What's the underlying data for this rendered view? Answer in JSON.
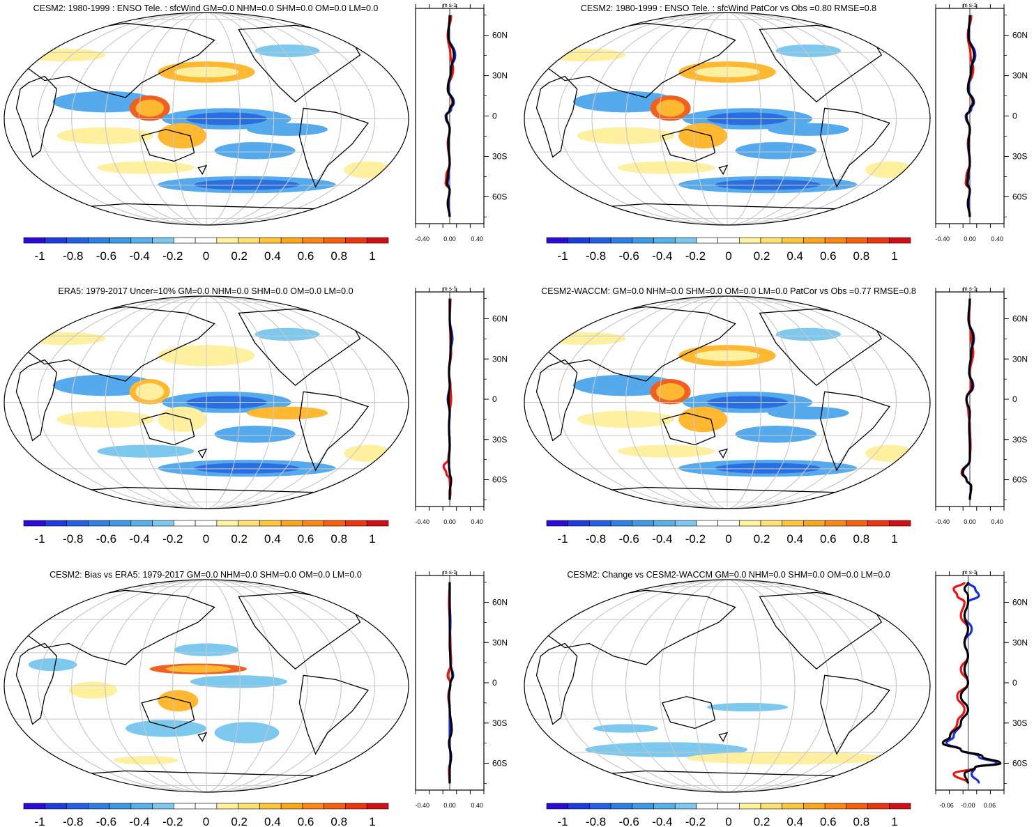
{
  "figure": {
    "description_units": "m s-1",
    "colorbar_ticks": [
      "-1",
      "-0.8",
      "-0.6",
      "-0.4",
      "-0.2",
      "0",
      "0.2",
      "0.4",
      "0.6",
      "0.8",
      "1"
    ],
    "colorbar_colors": [
      "#2a0bd9",
      "#1c3ce0",
      "#2460e6",
      "#2f7fe8",
      "#3d9ae6",
      "#55b2ea",
      "#7cc8ee",
      "#ffffff",
      "#ffffff",
      "#fff3a0",
      "#ffe070",
      "#ffc63c",
      "#ffa71a",
      "#ff8612",
      "#f9600c",
      "#ee3510",
      "#d30f14"
    ],
    "lat_labels": [
      "60N",
      "30N",
      "0",
      "30S",
      "60S"
    ],
    "lat_values": [
      60,
      30,
      0,
      -30,
      -60
    ]
  },
  "chart_data": [
    {
      "type": "heatmap",
      "panel": "top-left",
      "title": "CESM2: 1980-1999 : ENSO Tele. : sfcWind GM=0.0 NHM=0.0 SHM=0.0 OM=0.0 LM=0.0",
      "units": "m s-1",
      "zonal_plot": {
        "xlim": [
          -0.5,
          0.5
        ],
        "xtick_labels": [
          "-0.40",
          "0.00",
          "0.40"
        ],
        "xticks": [
          -0.4,
          0.0,
          0.4
        ],
        "ylim": [
          -80,
          80
        ]
      },
      "profiles": [
        {
          "name": "red",
          "color": "#ee1111",
          "lat": [
            75,
            60,
            45,
            35,
            20,
            10,
            5,
            0,
            -10,
            -20,
            -35,
            -45,
            -50,
            -55,
            -65,
            -75
          ],
          "values": [
            0.02,
            -0.03,
            0.01,
            0.05,
            -0.02,
            0.04,
            0.01,
            -0.05,
            0.0,
            -0.03,
            0.0,
            -0.05,
            -0.06,
            0.0,
            -0.03,
            0.0
          ]
        },
        {
          "name": "blue",
          "color": "#1a2fdd",
          "lat": [
            75,
            60,
            45,
            35,
            20,
            10,
            5,
            0,
            -10,
            -20,
            -35,
            -45,
            -50,
            -55,
            -65,
            -75
          ],
          "values": [
            0.0,
            -0.02,
            0.08,
            0.02,
            -0.02,
            0.06,
            0.02,
            -0.06,
            0.0,
            -0.02,
            0.0,
            -0.02,
            -0.03,
            0.0,
            -0.02,
            0.0
          ]
        },
        {
          "name": "black",
          "color": "#000000",
          "lat": [
            75,
            60,
            45,
            35,
            20,
            10,
            5,
            0,
            -10,
            -20,
            -35,
            -45,
            -50,
            -55,
            -65,
            -75
          ],
          "values": [
            0.0,
            -0.02,
            0.06,
            0.02,
            -0.03,
            0.05,
            0.0,
            -0.05,
            0.0,
            -0.02,
            0.0,
            -0.03,
            -0.04,
            0.0,
            -0.03,
            0.0
          ]
        }
      ]
    },
    {
      "type": "heatmap",
      "panel": "top-right",
      "title": "CESM2: 1980-1999 : ENSO Tele. : sfcWind PatCor vs Obs =0.80 RMSE=0.8",
      "units": "m s-1",
      "zonal_plot": {
        "xlim": [
          -0.5,
          0.5
        ],
        "xtick_labels": [
          "-0.40",
          "0.00",
          "0.40"
        ],
        "xticks": [
          -0.4,
          0.0,
          0.4
        ],
        "ylim": [
          -80,
          80
        ]
      },
      "profiles": [
        {
          "name": "red",
          "color": "#ee1111",
          "lat": [
            75,
            60,
            45,
            35,
            20,
            10,
            5,
            0,
            -10,
            -20,
            -35,
            -45,
            -50,
            -55,
            -65,
            -75
          ],
          "values": [
            0.02,
            -0.03,
            0.01,
            0.05,
            -0.02,
            0.04,
            0.01,
            -0.05,
            0.0,
            -0.03,
            0.0,
            -0.05,
            -0.06,
            0.0,
            -0.03,
            0.0
          ]
        },
        {
          "name": "blue",
          "color": "#1a2fdd",
          "lat": [
            75,
            60,
            45,
            35,
            20,
            10,
            5,
            0,
            -10,
            -20,
            -35,
            -45,
            -50,
            -55,
            -65,
            -75
          ],
          "values": [
            0.0,
            -0.02,
            0.08,
            0.02,
            -0.02,
            0.06,
            0.02,
            -0.06,
            0.0,
            -0.02,
            0.0,
            -0.02,
            -0.03,
            0.0,
            -0.02,
            0.0
          ]
        },
        {
          "name": "black",
          "color": "#000000",
          "lat": [
            75,
            60,
            45,
            35,
            20,
            10,
            5,
            0,
            -10,
            -20,
            -35,
            -45,
            -50,
            -55,
            -65,
            -75
          ],
          "values": [
            0.0,
            -0.02,
            0.06,
            0.02,
            -0.03,
            0.05,
            0.0,
            -0.05,
            0.0,
            -0.02,
            0.0,
            -0.03,
            -0.04,
            0.0,
            -0.03,
            0.0
          ]
        }
      ]
    },
    {
      "type": "heatmap",
      "panel": "middle-left",
      "title": "ERA5: 1979-2017 Uncer=10% GM=0.0 NHM=0.0 SHM=0.0 OM=0.0 LM=0.0",
      "units": "m s-1",
      "zonal_plot": {
        "xlim": [
          -0.5,
          0.5
        ],
        "xtick_labels": [
          "-0.40",
          "0.00",
          "0.40"
        ],
        "xticks": [
          -0.4,
          0.0,
          0.4
        ],
        "ylim": [
          -80,
          80
        ]
      },
      "profiles": [
        {
          "name": "red",
          "color": "#ee1111",
          "lat": [
            75,
            60,
            45,
            35,
            20,
            10,
            0,
            -10,
            -20,
            -35,
            -45,
            -50,
            -55,
            -60,
            -70,
            -75
          ],
          "values": [
            0.01,
            0.0,
            0.01,
            0.02,
            -0.01,
            0.01,
            0.02,
            0.0,
            -0.01,
            0.0,
            -0.02,
            -0.09,
            -0.05,
            0.0,
            0.01,
            0.0
          ]
        },
        {
          "name": "blue",
          "color": "#1a2fdd",
          "lat": [
            75,
            60,
            45,
            35,
            20,
            10,
            0,
            -10,
            -20,
            -35,
            -45,
            -50,
            -55,
            -60,
            -70,
            -75
          ],
          "values": [
            0.0,
            0.0,
            0.04,
            0.01,
            -0.01,
            0.0,
            -0.03,
            0.0,
            -0.01,
            0.0,
            -0.01,
            -0.01,
            0.0,
            0.02,
            0.0,
            0.0
          ]
        },
        {
          "name": "black",
          "color": "#000000",
          "lat": [
            75,
            60,
            45,
            35,
            20,
            10,
            0,
            -10,
            -20,
            -35,
            -45,
            -50,
            -55,
            -60,
            -70,
            -75
          ],
          "values": [
            0.0,
            0.0,
            0.02,
            0.01,
            -0.01,
            0.0,
            -0.02,
            0.0,
            -0.01,
            0.0,
            -0.01,
            -0.01,
            0.0,
            0.02,
            0.0,
            0.0
          ]
        }
      ]
    },
    {
      "type": "heatmap",
      "panel": "middle-right",
      "title": "CESM2-WACCM: GM=0.0 NHM=0.0 SHM=0.0 OM=0.0 LM=0.0 PatCor vs Obs =0.77 RMSE=0.8",
      "units": "m s-1",
      "zonal_plot": {
        "xlim": [
          -0.5,
          0.5
        ],
        "xtick_labels": [
          "-0.40",
          "0.00",
          "0.40"
        ],
        "xticks": [
          -0.4,
          0.0,
          0.4
        ],
        "ylim": [
          -80,
          80
        ]
      },
      "profiles": [
        {
          "name": "red",
          "color": "#ee1111",
          "lat": [
            75,
            60,
            45,
            35,
            20,
            10,
            0,
            -10,
            -20,
            -35,
            -45,
            -55,
            -60,
            -65,
            -75
          ],
          "values": [
            0.0,
            -0.01,
            0.02,
            0.05,
            0.0,
            0.02,
            -0.05,
            -0.02,
            0.0,
            0.01,
            0.0,
            -0.12,
            -0.05,
            0.02,
            0.0
          ]
        },
        {
          "name": "blue",
          "color": "#1a2fdd",
          "lat": [
            75,
            60,
            45,
            35,
            20,
            10,
            0,
            -10,
            -20,
            -35,
            -45,
            -55,
            -60,
            -65,
            -75
          ],
          "values": [
            0.0,
            -0.02,
            0.06,
            0.02,
            -0.01,
            0.05,
            -0.05,
            0.0,
            -0.01,
            0.0,
            0.0,
            -0.1,
            -0.05,
            0.02,
            0.0
          ]
        },
        {
          "name": "black",
          "color": "#000000",
          "lat": [
            75,
            60,
            45,
            35,
            20,
            10,
            0,
            -10,
            -20,
            -35,
            -45,
            -55,
            -60,
            -65,
            -75
          ],
          "values": [
            0.0,
            -0.02,
            0.05,
            0.02,
            -0.01,
            0.04,
            -0.05,
            0.0,
            -0.01,
            0.0,
            0.0,
            -0.11,
            -0.05,
            0.02,
            0.0
          ]
        }
      ]
    },
    {
      "type": "heatmap",
      "panel": "bottom-left",
      "title": "CESM2: Bias vs ERA5: 1979-2017 GM=0.0 NHM=0.0 SHM=0.0 OM=0.0 LM=0.0",
      "units": "m s-1",
      "zonal_plot": {
        "xlim": [
          -0.5,
          0.5
        ],
        "xtick_labels": [
          "-0.40",
          "0.00",
          "0.40"
        ],
        "xticks": [
          -0.4,
          0.0,
          0.4
        ],
        "ylim": [
          -80,
          80
        ]
      },
      "profiles": [
        {
          "name": "red",
          "color": "#ee1111",
          "lat": [
            75,
            60,
            45,
            30,
            15,
            5,
            0,
            -10,
            -20,
            -35,
            -45,
            -55,
            -65,
            -75
          ],
          "values": [
            0.0,
            -0.01,
            0.0,
            0.01,
            0.02,
            -0.03,
            0.01,
            -0.02,
            0.0,
            0.03,
            -0.01,
            0.02,
            -0.01,
            0.0
          ]
        },
        {
          "name": "blue",
          "color": "#1a2fdd",
          "lat": [
            75,
            60,
            45,
            30,
            15,
            5,
            0,
            -10,
            -20,
            -35,
            -45,
            -55,
            -65,
            -75
          ],
          "values": [
            0.0,
            0.0,
            0.01,
            0.0,
            0.01,
            0.05,
            0.01,
            -0.01,
            0.0,
            0.0,
            0.0,
            0.01,
            0.0,
            0.0
          ]
        },
        {
          "name": "black",
          "color": "#000000",
          "lat": [
            75,
            60,
            45,
            30,
            15,
            5,
            0,
            -10,
            -20,
            -35,
            -45,
            -55,
            -65,
            -75
          ],
          "values": [
            0.0,
            0.0,
            0.0,
            0.0,
            0.01,
            0.04,
            0.01,
            -0.01,
            0.0,
            0.03,
            -0.01,
            0.02,
            0.0,
            0.0
          ]
        }
      ]
    },
    {
      "type": "heatmap",
      "panel": "bottom-right",
      "title": "CESM2: Change vs CESM2-WACCM GM=0.0 NHM=0.0 SHM=0.0 OM=0.0 LM=0.0",
      "units": "m s-1",
      "zonal_plot": {
        "xlim": [
          -0.09,
          0.1
        ],
        "xtick_labels": [
          "-0.06",
          "-0.00",
          "0.06"
        ],
        "xticks": [
          -0.06,
          0.0,
          0.06
        ],
        "ylim": [
          -80,
          80
        ]
      },
      "profiles": [
        {
          "name": "red",
          "color": "#ee1111",
          "lat": [
            75,
            70,
            65,
            60,
            50,
            40,
            30,
            20,
            10,
            0,
            -10,
            -20,
            -30,
            -40,
            -45,
            -50,
            -55,
            -60,
            -63,
            -68,
            -75
          ],
          "values": [
            -0.01,
            -0.04,
            -0.03,
            -0.01,
            -0.02,
            0.0,
            -0.01,
            0.0,
            -0.02,
            0.0,
            -0.03,
            -0.01,
            -0.03,
            -0.05,
            -0.07,
            -0.02,
            0.04,
            0.09,
            0.02,
            -0.04,
            0.0
          ]
        },
        {
          "name": "blue",
          "color": "#1a2fdd",
          "lat": [
            75,
            70,
            65,
            60,
            50,
            40,
            30,
            20,
            10,
            0,
            -10,
            -20,
            -30,
            -40,
            -45,
            -50,
            -55,
            -60,
            -63,
            -68,
            -75
          ],
          "values": [
            0.0,
            0.02,
            0.03,
            0.0,
            -0.01,
            0.01,
            -0.01,
            0.0,
            -0.01,
            0.0,
            -0.02,
            0.0,
            -0.02,
            -0.04,
            -0.06,
            -0.02,
            0.03,
            0.08,
            0.02,
            0.01,
            0.03
          ]
        },
        {
          "name": "black",
          "color": "#000000",
          "lat": [
            75,
            70,
            65,
            60,
            50,
            40,
            30,
            20,
            10,
            0,
            -10,
            -20,
            -30,
            -40,
            -45,
            -50,
            -55,
            -60,
            -63,
            -68,
            -75
          ],
          "values": [
            0.0,
            -0.01,
            0.0,
            0.0,
            -0.01,
            0.0,
            -0.01,
            0.0,
            -0.01,
            0.0,
            -0.02,
            0.0,
            -0.02,
            -0.05,
            -0.07,
            -0.02,
            0.04,
            0.09,
            0.02,
            -0.01,
            0.0
          ]
        }
      ]
    }
  ]
}
